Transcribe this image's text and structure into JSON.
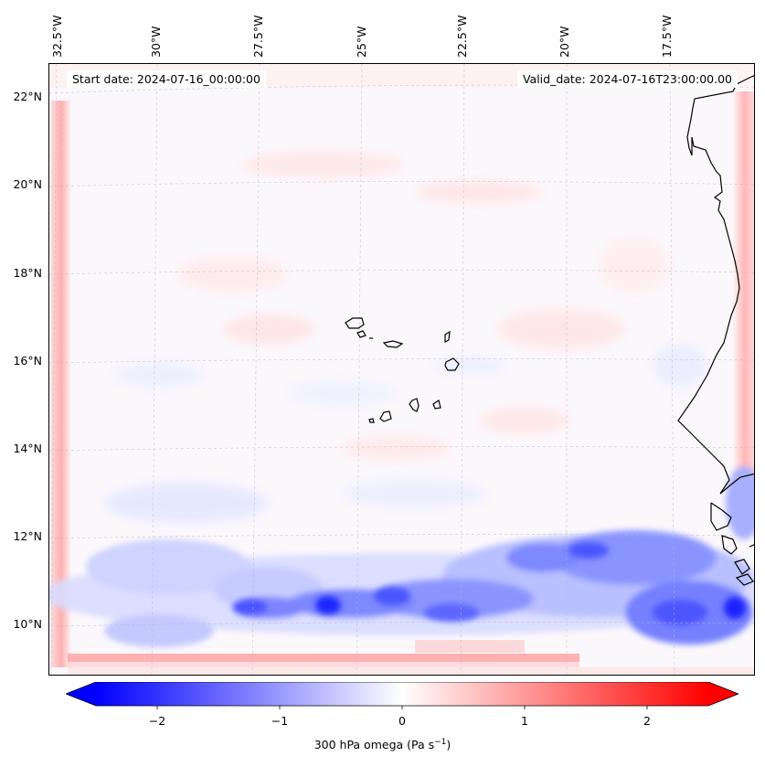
{
  "header": {
    "start_date": "Start date: 2024-07-16_00:00:00",
    "valid_date": "Valid_date: 2024-07-16T23:00:00.00"
  },
  "lon_labels": [
    "32.5°W",
    "30°W",
    "27.5°W",
    "25°W",
    "22.5°W",
    "20°W",
    "17.5°W"
  ],
  "lat_labels": [
    "22°N",
    "20°N",
    "18°N",
    "16°N",
    "14°N",
    "12°N",
    "10°N"
  ],
  "colorbar": {
    "ticks": [
      "−2",
      "−1",
      "0",
      "1",
      "2"
    ],
    "title": "300 hPa omega (Pa s",
    "title_sup": "−1",
    "title_end": ")",
    "min": -2.7,
    "max": 2.7,
    "cmap": "bwr",
    "extend": "both"
  },
  "colors": {
    "negative": "#0000ff",
    "positive": "#ff0000",
    "neutral": "#ffffff",
    "coast": "#000000",
    "grid": "#bbbbbb"
  },
  "map": {
    "projection": "lambert-conformal",
    "lat_range": [
      9,
      22.5
    ],
    "lon_range": [
      -32.6,
      -15.5
    ],
    "field": "300 hPa omega"
  }
}
